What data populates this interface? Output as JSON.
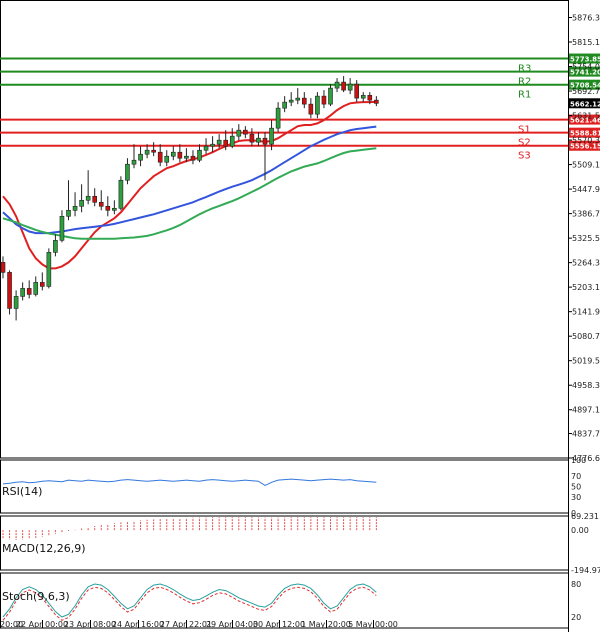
{
  "chart_data": {
    "type": "candlestick",
    "y_ticks": [
      5876.3,
      5815.15,
      5754.0,
      5692.7,
      5631.5,
      5570.3,
      5509.15,
      5447.9,
      5386.7,
      5325.5,
      5264.3,
      5203.15,
      5141.9,
      5080.7,
      5019.55,
      4958.3,
      4897.1,
      4837.7,
      4776.6
    ],
    "ylim": [
      4776.6,
      5900
    ],
    "x_ticks": [
      "20:00",
      "22 Apr 00:00",
      "23 Apr 08:00",
      "24 Apr 16:00",
      "27 Apr 22:01",
      "29 Apr 04:00",
      "30 Apr 12:00",
      "1 May 20:00",
      "5 May 00:00"
    ],
    "last_price": {
      "label": "5662.12",
      "value": 5662.12
    },
    "levels": [
      {
        "name": "R3",
        "label": "5773.85",
        "value": 5773.85,
        "color": "#1f8a1f"
      },
      {
        "name": "R2",
        "label": "5741.20",
        "value": 5741.2,
        "color": "#1f8a1f"
      },
      {
        "name": "R1",
        "label": "5708.54",
        "value": 5708.54,
        "color": "#1f8a1f"
      },
      {
        "name": "S1",
        "label": "5621.46",
        "value": 5621.46,
        "color": "#e02020"
      },
      {
        "name": "S2",
        "label": "5588.81",
        "value": 5588.81,
        "color": "#e02020"
      },
      {
        "name": "S3",
        "label": "5556.15",
        "value": 5556.15,
        "color": "#e02020"
      }
    ],
    "candles": [
      [
        5265,
        5240,
        5280,
        5225
      ],
      [
        5240,
        5150,
        5245,
        5135
      ],
      [
        5150,
        5180,
        5195,
        5120
      ],
      [
        5180,
        5200,
        5215,
        5170
      ],
      [
        5200,
        5185,
        5220,
        5175
      ],
      [
        5185,
        5215,
        5230,
        5180
      ],
      [
        5215,
        5205,
        5240,
        5195
      ],
      [
        5205,
        5290,
        5300,
        5200
      ],
      [
        5290,
        5320,
        5335,
        5280
      ],
      [
        5320,
        5380,
        5395,
        5315
      ],
      [
        5380,
        5395,
        5470,
        5370
      ],
      [
        5395,
        5405,
        5440,
        5380
      ],
      [
        5405,
        5420,
        5460,
        5390
      ],
      [
        5420,
        5430,
        5495,
        5410
      ],
      [
        5430,
        5415,
        5450,
        5405
      ],
      [
        5415,
        5405,
        5445,
        5395
      ],
      [
        5405,
        5395,
        5430,
        5380
      ],
      [
        5395,
        5400,
        5420,
        5385
      ],
      [
        5400,
        5470,
        5480,
        5395
      ],
      [
        5470,
        5510,
        5525,
        5460
      ],
      [
        5510,
        5520,
        5560,
        5500
      ],
      [
        5520,
        5535,
        5555,
        5505
      ],
      [
        5535,
        5545,
        5560,
        5525
      ],
      [
        5545,
        5540,
        5565,
        5530
      ],
      [
        5540,
        5515,
        5560,
        5505
      ],
      [
        5515,
        5530,
        5545,
        5505
      ],
      [
        5530,
        5540,
        5555,
        5520
      ],
      [
        5540,
        5525,
        5560,
        5515
      ],
      [
        5525,
        5530,
        5550,
        5515
      ],
      [
        5530,
        5520,
        5545,
        5510
      ],
      [
        5520,
        5545,
        5560,
        5515
      ],
      [
        5545,
        5555,
        5575,
        5535
      ],
      [
        5555,
        5560,
        5580,
        5540
      ],
      [
        5560,
        5570,
        5585,
        5550
      ],
      [
        5570,
        5555,
        5595,
        5545
      ],
      [
        5555,
        5580,
        5600,
        5550
      ],
      [
        5580,
        5595,
        5610,
        5570
      ],
      [
        5595,
        5585,
        5605,
        5575
      ],
      [
        5585,
        5565,
        5600,
        5555
      ],
      [
        5565,
        5575,
        5590,
        5555
      ],
      [
        5575,
        5560,
        5590,
        5470
      ],
      [
        5560,
        5600,
        5620,
        5545
      ],
      [
        5600,
        5650,
        5665,
        5590
      ],
      [
        5650,
        5665,
        5680,
        5640
      ],
      [
        5665,
        5670,
        5690,
        5655
      ],
      [
        5670,
        5675,
        5700,
        5660
      ],
      [
        5675,
        5660,
        5690,
        5650
      ],
      [
        5660,
        5635,
        5675,
        5625
      ],
      [
        5635,
        5680,
        5690,
        5625
      ],
      [
        5680,
        5660,
        5695,
        5650
      ],
      [
        5660,
        5700,
        5710,
        5655
      ],
      [
        5700,
        5715,
        5725,
        5690
      ],
      [
        5715,
        5695,
        5730,
        5690
      ],
      [
        5695,
        5710,
        5725,
        5685
      ],
      [
        5710,
        5675,
        5720,
        5665
      ],
      [
        5675,
        5682,
        5690,
        5665
      ],
      [
        5682,
        5670,
        5690,
        5660
      ],
      [
        5670,
        5662,
        5680,
        5655
      ]
    ],
    "series": [
      {
        "values": [
          5430,
          5410,
          5380,
          5340,
          5300,
          5275,
          5260,
          5250,
          5250,
          5255,
          5265,
          5280,
          5300,
          5320,
          5340,
          5355,
          5365,
          5375,
          5390,
          5410,
          5430,
          5450,
          5465,
          5480,
          5490,
          5500,
          5505,
          5512,
          5518,
          5522,
          5527,
          5533,
          5540,
          5548,
          5555,
          5562,
          5568,
          5570,
          5570,
          5568,
          5566,
          5568,
          5575,
          5585,
          5595,
          5605,
          5608,
          5608,
          5612,
          5620,
          5632,
          5645,
          5655,
          5662,
          5664,
          5665,
          5665,
          5666
        ]
      },
      {
        "values": [
          5390,
          5375,
          5360,
          5350,
          5342,
          5338,
          5338,
          5338,
          5340,
          5342,
          5345,
          5348,
          5350,
          5352,
          5354,
          5356,
          5358,
          5361,
          5365,
          5369,
          5373,
          5377,
          5381,
          5385,
          5390,
          5395,
          5400,
          5405,
          5410,
          5415,
          5422,
          5428,
          5435,
          5442,
          5448,
          5454,
          5459,
          5464,
          5470,
          5478,
          5486,
          5495,
          5505,
          5515,
          5525,
          5535,
          5545,
          5555,
          5563,
          5571,
          5578,
          5585,
          5590,
          5595,
          5598,
          5600,
          5602,
          5604
        ]
      },
      {
        "values": [
          5375,
          5370,
          5365,
          5358,
          5352,
          5346,
          5341,
          5337,
          5334,
          5331,
          5328,
          5325,
          5324,
          5324,
          5324,
          5324,
          5324,
          5324,
          5325,
          5326,
          5327,
          5329,
          5331,
          5335,
          5340,
          5345,
          5351,
          5358,
          5367,
          5376,
          5385,
          5393,
          5400,
          5406,
          5412,
          5418,
          5425,
          5433,
          5441,
          5449,
          5458,
          5467,
          5476,
          5484,
          5492,
          5498,
          5504,
          5508,
          5512,
          5518,
          5525,
          5532,
          5538,
          5542,
          5544,
          5546,
          5548,
          5550
        ]
      }
    ],
    "indicators": [
      {
        "name": "RSI(14)",
        "ticks": [
          "100",
          "70",
          "50",
          "30",
          "0"
        ],
        "values": [
          55,
          56,
          58,
          59,
          57,
          58,
          60,
          61,
          60,
          59,
          62,
          61,
          60,
          62,
          61,
          60,
          59,
          60,
          62,
          63,
          62,
          61,
          60,
          61,
          62,
          61,
          60,
          61,
          62,
          61,
          60,
          62,
          63,
          62,
          61,
          60,
          61,
          62,
          61,
          60,
          52,
          58,
          62,
          63,
          64,
          63,
          62,
          61,
          62,
          63,
          64,
          63,
          62,
          63,
          61,
          60,
          59,
          58
        ]
      },
      {
        "name": "MACD(12,26,9)",
        "ticks": [
          "69.231",
          "0.00",
          "-194.970"
        ],
        "values": [
          -40,
          -45,
          -48,
          -46,
          -42,
          -38,
          -32,
          -25,
          -18,
          -10,
          -4,
          2,
          8,
          14,
          20,
          25,
          30,
          34,
          38,
          42,
          45,
          48,
          51,
          53,
          55,
          57,
          58,
          59,
          60,
          61,
          62,
          62,
          63,
          63,
          63,
          63,
          63,
          63,
          63,
          62,
          61,
          61,
          62,
          62,
          63,
          63,
          63,
          63,
          63,
          63,
          63,
          63,
          63,
          63,
          63,
          63,
          63,
          63
        ]
      },
      {
        "name": "Stoch(9,6,3)",
        "ticks": [
          "80",
          "20"
        ],
        "values": [
          20,
          35,
          55,
          70,
          75,
          70,
          60,
          45,
          30,
          20,
          25,
          40,
          60,
          75,
          80,
          78,
          70,
          58,
          45,
          35,
          40,
          55,
          70,
          78,
          80,
          76,
          70,
          62,
          55,
          50,
          52,
          58,
          65,
          70,
          68,
          62,
          55,
          50,
          45,
          40,
          38,
          45,
          60,
          72,
          78,
          80,
          78,
          72,
          60,
          45,
          35,
          40,
          55,
          70,
          78,
          80,
          75,
          65
        ]
      }
    ]
  }
}
